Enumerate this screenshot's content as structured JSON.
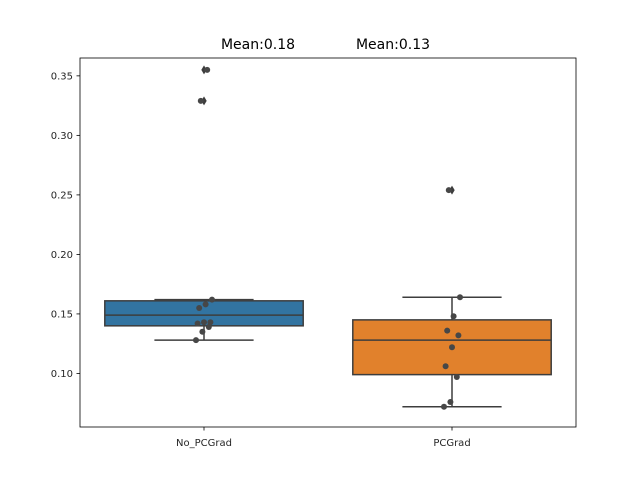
{
  "chart_data": {
    "type": "box",
    "title": "",
    "xlabel": "",
    "ylabel": "",
    "ylim": [
      0.055,
      0.365
    ],
    "yticks": [
      0.1,
      0.15,
      0.2,
      0.25,
      0.3,
      0.35
    ],
    "ytick_labels": [
      "0.10",
      "0.15",
      "0.20",
      "0.25",
      "0.30",
      "0.35"
    ],
    "annotations": [
      "Mean:0.18",
      "Mean:0.13"
    ],
    "categories": [
      "No_PCGrad",
      "PCGrad"
    ],
    "boxes": [
      {
        "category": "No_PCGrad",
        "color": "#3274a1",
        "q1": 0.14,
        "median": 0.149,
        "q3": 0.161,
        "whisker_low": 0.128,
        "whisker_high": 0.162,
        "outliers": [
          0.329,
          0.355
        ],
        "points": [
          0.128,
          0.135,
          0.139,
          0.142,
          0.143,
          0.143,
          0.155,
          0.158,
          0.162,
          0.329,
          0.355
        ]
      },
      {
        "category": "PCGrad",
        "color": "#e1812c",
        "q1": 0.099,
        "median": 0.128,
        "q3": 0.145,
        "whisker_low": 0.072,
        "whisker_high": 0.164,
        "outliers": [
          0.254
        ],
        "points": [
          0.072,
          0.076,
          0.097,
          0.106,
          0.122,
          0.132,
          0.136,
          0.148,
          0.164,
          0.254
        ]
      }
    ],
    "line_color": "#3d3d3d",
    "point_color": "#474747"
  }
}
